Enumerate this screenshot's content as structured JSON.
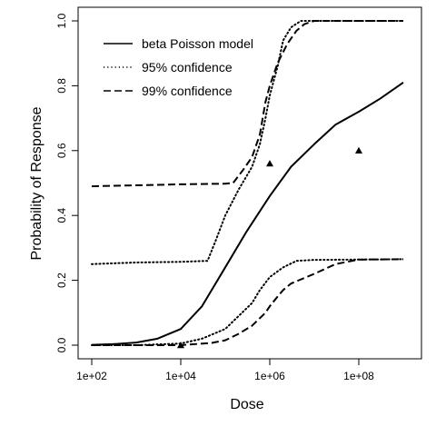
{
  "chart_data": {
    "type": "line",
    "xlabel": "Dose",
    "ylabel": "Probability of Response",
    "x_scale": "log10",
    "xlim": [
      100,
      1000000000
    ],
    "ylim": [
      0,
      1
    ],
    "x_ticks": [
      {
        "value": 100,
        "label": "1e+02"
      },
      {
        "value": 10000,
        "label": "1e+04"
      },
      {
        "value": 1000000,
        "label": "1e+06"
      },
      {
        "value": 100000000,
        "label": "1e+08"
      }
    ],
    "y_ticks": [
      {
        "value": 0.0,
        "label": "0.0"
      },
      {
        "value": 0.2,
        "label": "0.2"
      },
      {
        "value": 0.4,
        "label": "0.4"
      },
      {
        "value": 0.6,
        "label": "0.6"
      },
      {
        "value": 0.8,
        "label": "0.8"
      },
      {
        "value": 1.0,
        "label": "1.0"
      }
    ],
    "legend_position": "top-left",
    "legend": [
      {
        "label": "beta Poisson model",
        "line_style": "solid"
      },
      {
        "label": "95% confidence",
        "line_style": "dotted"
      },
      {
        "label": "99% confidence",
        "line_style": "dashed"
      }
    ],
    "series": [
      {
        "name": "beta Poisson model",
        "line_style": "solid",
        "color": "#000000",
        "x": [
          100,
          300,
          1000,
          3000,
          10000,
          30000,
          100000,
          300000,
          1000000,
          3000000,
          10000000,
          30000000,
          100000000,
          300000000,
          1000000000
        ],
        "y": [
          0.001,
          0.003,
          0.008,
          0.02,
          0.05,
          0.12,
          0.24,
          0.35,
          0.46,
          0.55,
          0.62,
          0.68,
          0.72,
          0.76,
          0.81
        ]
      },
      {
        "name": "95% confidence",
        "line_style": "dotted",
        "color": "#000000",
        "x": [
          100,
          1000,
          10000,
          40000,
          60000,
          100000,
          200000,
          400000,
          600000,
          800000,
          1000000,
          1500000,
          2000000,
          3000000,
          5000000,
          10000000,
          100000000,
          1000000000
        ],
        "y": [
          0.25,
          0.255,
          0.257,
          0.26,
          0.32,
          0.4,
          0.48,
          0.55,
          0.62,
          0.7,
          0.77,
          0.86,
          0.94,
          0.98,
          1.0,
          1.0,
          1.0,
          1.0
        ]
      },
      {
        "name": "95% confidence",
        "line_style": "dotted",
        "color": "#000000",
        "x": [
          100,
          1000,
          10000,
          30000,
          100000,
          200000,
          400000,
          600000,
          1000000,
          2000000,
          4000000,
          10000000,
          100000000,
          1000000000
        ],
        "y": [
          0.0,
          0.0,
          0.005,
          0.02,
          0.05,
          0.09,
          0.13,
          0.17,
          0.21,
          0.24,
          0.26,
          0.263,
          0.264,
          0.265
        ]
      },
      {
        "name": "99% confidence",
        "line_style": "dashed",
        "color": "#000000",
        "x": [
          100,
          1000,
          10000,
          100000,
          150000,
          250000,
          400000,
          600000,
          800000,
          1000000,
          1500000,
          2500000,
          4000000,
          6000000,
          10000000,
          100000000,
          1000000000
        ],
        "y": [
          0.49,
          0.493,
          0.496,
          0.498,
          0.5,
          0.54,
          0.58,
          0.65,
          0.75,
          0.8,
          0.87,
          0.93,
          0.97,
          0.99,
          1.0,
          1.0,
          1.0
        ]
      },
      {
        "name": "99% confidence",
        "line_style": "dashed",
        "color": "#000000",
        "x": [
          100,
          1000,
          10000,
          50000,
          100000,
          200000,
          400000,
          800000,
          1000000,
          1500000,
          2000000,
          3000000,
          10000000,
          30000000,
          100000000,
          1000000000
        ],
        "y": [
          0.0,
          0.0,
          0.0,
          0.007,
          0.015,
          0.035,
          0.06,
          0.1,
          0.12,
          0.15,
          0.17,
          0.19,
          0.22,
          0.25,
          0.264,
          0.265
        ]
      }
    ],
    "points": [
      {
        "x": 10000,
        "y": 0.0,
        "marker": "triangle"
      },
      {
        "x": 1000000,
        "y": 0.56,
        "marker": "triangle"
      },
      {
        "x": 100000000,
        "y": 0.6,
        "marker": "triangle"
      }
    ]
  }
}
